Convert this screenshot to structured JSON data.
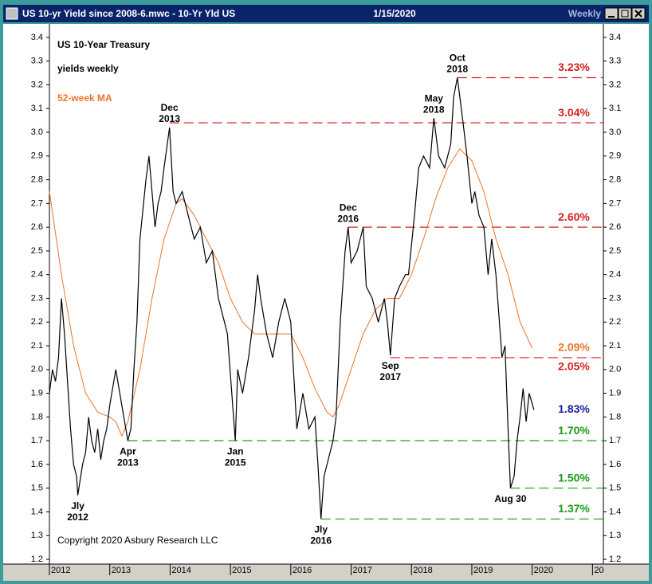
{
  "window": {
    "title": "US 10-yr Yield since 2008-6.mwc - 10-Yr Yld US",
    "date": "1/15/2020",
    "period": "Weekly"
  },
  "chart_data": {
    "type": "line",
    "title": [
      "US 10-Year Treasury",
      "yields weekly"
    ],
    "subtitle": "52-week MA",
    "footnote": "Copyright 2020 Asbury Research LLC",
    "xlim": [
      2012,
      2021.18
    ],
    "xticks": [
      2012,
      2013,
      2014,
      2015,
      2016,
      2017,
      2018,
      2019,
      2020,
      {
        "value": 2021,
        "label": "20"
      }
    ],
    "ylim": [
      1.18,
      3.44
    ],
    "yticks": [
      1.2,
      1.3,
      1.4,
      1.5,
      1.6,
      1.7,
      1.8,
      1.9,
      {
        "value": 2,
        "label": "2.0"
      },
      2.1,
      2.2,
      2.3,
      2.4,
      2.5,
      2.6,
      2.7,
      2.8,
      2.9,
      {
        "value": 3,
        "label": "3.0"
      },
      3.1,
      3.2,
      3.3,
      3.4
    ],
    "series": [
      {
        "name": "10-Yr Yld US",
        "color": "#000000",
        "x": [
          2012.0,
          2012.05,
          2012.1,
          2012.15,
          2012.2,
          2012.25,
          2012.3,
          2012.35,
          2012.4,
          2012.45,
          2012.47,
          2012.55,
          2012.6,
          2012.65,
          2012.7,
          2012.75,
          2012.8,
          2012.85,
          2012.9,
          2012.95,
          2013.0,
          2013.1,
          2013.2,
          2013.3,
          2013.35,
          2013.4,
          2013.45,
          2013.5,
          2013.6,
          2013.65,
          2013.7,
          2013.75,
          2013.8,
          2013.85,
          2013.9,
          2013.99,
          2014.05,
          2014.1,
          2014.2,
          2014.3,
          2014.4,
          2014.5,
          2014.6,
          2014.7,
          2014.8,
          2014.9,
          2014.95,
          2015.08,
          2015.12,
          2015.2,
          2015.3,
          2015.4,
          2015.45,
          2015.5,
          2015.6,
          2015.7,
          2015.8,
          2015.9,
          2016.0,
          2016.1,
          2016.2,
          2016.3,
          2016.4,
          2016.45,
          2016.5,
          2016.55,
          2016.6,
          2016.7,
          2016.75,
          2016.82,
          2016.9,
          2016.95,
          2017.0,
          2017.1,
          2017.2,
          2017.25,
          2017.35,
          2017.45,
          2017.55,
          2017.6,
          2017.65,
          2017.72,
          2017.8,
          2017.9,
          2017.95,
          2018.05,
          2018.12,
          2018.2,
          2018.3,
          2018.37,
          2018.45,
          2018.55,
          2018.65,
          2018.7,
          2018.76,
          2018.85,
          2018.92,
          2019.0,
          2019.05,
          2019.12,
          2019.2,
          2019.27,
          2019.33,
          2019.4,
          2019.5,
          2019.55,
          2019.6,
          2019.64,
          2019.7,
          2019.75,
          2019.8,
          2019.85,
          2019.9,
          2019.95,
          2020.03
        ],
        "values": [
          1.9,
          2.0,
          1.95,
          2.05,
          2.3,
          2.15,
          1.95,
          1.75,
          1.6,
          1.55,
          1.47,
          1.6,
          1.65,
          1.8,
          1.7,
          1.65,
          1.75,
          1.62,
          1.7,
          1.75,
          1.85,
          2.0,
          1.85,
          1.7,
          1.75,
          2.0,
          2.2,
          2.55,
          2.8,
          2.9,
          2.75,
          2.6,
          2.7,
          2.75,
          2.85,
          3.02,
          2.75,
          2.7,
          2.75,
          2.65,
          2.55,
          2.6,
          2.45,
          2.5,
          2.3,
          2.2,
          2.15,
          1.7,
          2.0,
          1.9,
          2.05,
          2.25,
          2.4,
          2.3,
          2.15,
          2.05,
          2.2,
          2.3,
          2.2,
          1.75,
          1.9,
          1.75,
          1.8,
          1.6,
          1.37,
          1.55,
          1.6,
          1.7,
          1.8,
          2.2,
          2.5,
          2.6,
          2.45,
          2.5,
          2.6,
          2.35,
          2.3,
          2.2,
          2.3,
          2.2,
          2.06,
          2.3,
          2.35,
          2.4,
          2.4,
          2.65,
          2.85,
          2.9,
          2.85,
          3.06,
          2.9,
          2.85,
          2.95,
          3.15,
          3.23,
          3.05,
          2.9,
          2.7,
          2.75,
          2.65,
          2.6,
          2.4,
          2.55,
          2.4,
          2.05,
          2.1,
          1.75,
          1.5,
          1.55,
          1.7,
          1.8,
          1.92,
          1.78,
          1.9,
          1.83
        ]
      },
      {
        "name": "52-week MA",
        "color": "#e8742c",
        "x": [
          2012.0,
          2012.2,
          2012.4,
          2012.6,
          2012.8,
          2013.0,
          2013.1,
          2013.2,
          2013.3,
          2013.5,
          2013.7,
          2013.9,
          2014.1,
          2014.2,
          2014.4,
          2014.6,
          2014.8,
          2015.0,
          2015.2,
          2015.4,
          2015.6,
          2015.8,
          2016.0,
          2016.2,
          2016.4,
          2016.6,
          2016.7,
          2016.8,
          2017.0,
          2017.2,
          2017.4,
          2017.6,
          2017.8,
          2017.9,
          2018.0,
          2018.2,
          2018.4,
          2018.6,
          2018.8,
          2019.0,
          2019.2,
          2019.4,
          2019.6,
          2019.8,
          2020.0
        ],
        "values": [
          2.75,
          2.4,
          2.1,
          1.9,
          1.82,
          1.8,
          1.78,
          1.72,
          1.78,
          2.0,
          2.3,
          2.55,
          2.7,
          2.72,
          2.65,
          2.55,
          2.45,
          2.3,
          2.2,
          2.15,
          2.15,
          2.15,
          2.15,
          2.05,
          1.92,
          1.82,
          1.8,
          1.85,
          2.0,
          2.15,
          2.25,
          2.3,
          2.3,
          2.35,
          2.4,
          2.55,
          2.72,
          2.85,
          2.93,
          2.88,
          2.75,
          2.55,
          2.4,
          2.2,
          2.09
        ]
      }
    ],
    "levels": [
      {
        "value": 3.23,
        "label": "3.23%",
        "color": "#d42020",
        "start": 2018.76,
        "line": true
      },
      {
        "value": 3.04,
        "label": "3.04%",
        "color": "#d42020",
        "start": 2013.99,
        "line": true
      },
      {
        "value": 2.6,
        "label": "2.60%",
        "color": "#d42020",
        "start": 2016.95,
        "line": true
      },
      {
        "value": 2.09,
        "label": "2.09%",
        "color": "#e8742c",
        "line": false
      },
      {
        "value": 2.05,
        "label": "2.05%",
        "color": "#d42020",
        "start": 2017.65,
        "line": true
      },
      {
        "value": 1.83,
        "label": "1.83%",
        "color": "#1a1aa0",
        "line": false
      },
      {
        "value": 1.7,
        "label": "1.70%",
        "color": "#1a9a1a",
        "start": 2013.3,
        "line": true
      },
      {
        "value": 1.5,
        "label": "1.50%",
        "color": "#1a9a1a",
        "start": 2019.64,
        "line": true
      },
      {
        "value": 1.37,
        "label": "1.37%",
        "color": "#1a9a1a",
        "start": 2016.5,
        "line": true
      }
    ],
    "annotations": [
      {
        "text": [
          "Jly",
          "2012"
        ],
        "x": 2012.47,
        "y": 1.47,
        "side": "below"
      },
      {
        "text": [
          "Apr",
          "2013"
        ],
        "x": 2013.3,
        "y": 1.7,
        "side": "below"
      },
      {
        "text": [
          "Dec",
          "2013"
        ],
        "x": 2013.99,
        "y": 3.02,
        "side": "above"
      },
      {
        "text": [
          "Jan",
          "2015"
        ],
        "x": 2015.08,
        "y": 1.7,
        "side": "below"
      },
      {
        "text": [
          "Jly",
          "2016"
        ],
        "x": 2016.5,
        "y": 1.37,
        "side": "below"
      },
      {
        "text": [
          "Dec",
          "2016"
        ],
        "x": 2016.95,
        "y": 2.6,
        "side": "above"
      },
      {
        "text": [
          "Sep",
          "2017"
        ],
        "x": 2017.65,
        "y": 2.06,
        "side": "below"
      },
      {
        "text": [
          "May",
          "2018"
        ],
        "x": 2018.37,
        "y": 3.06,
        "side": "above"
      },
      {
        "text": [
          "Oct",
          "2018"
        ],
        "x": 2018.76,
        "y": 3.23,
        "side": "above"
      },
      {
        "text": [
          "Aug 30"
        ],
        "x": 2019.64,
        "y": 1.5,
        "side": "below"
      }
    ]
  }
}
